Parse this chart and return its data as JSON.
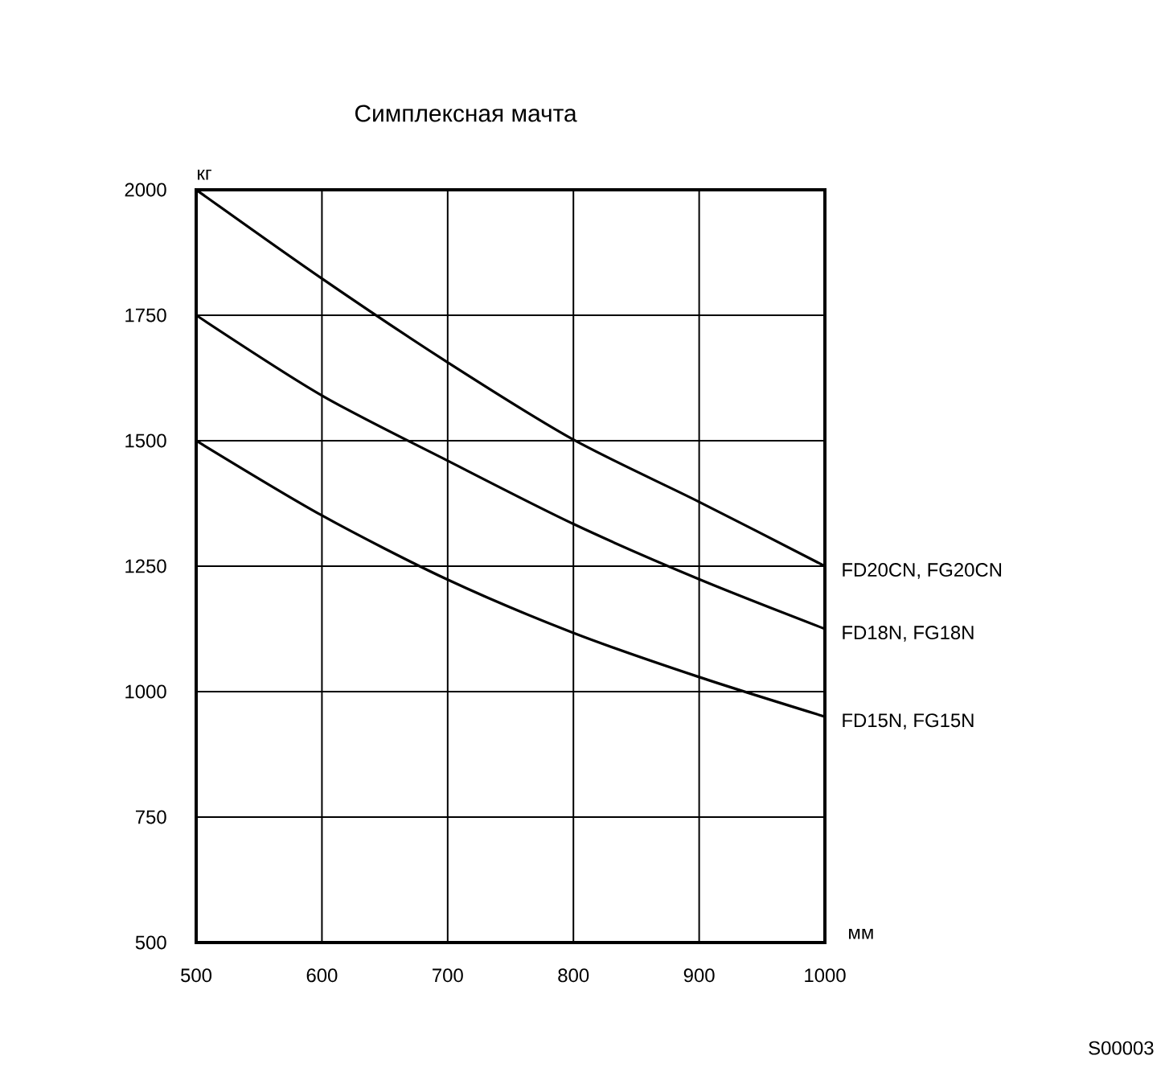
{
  "chart_data": {
    "type": "line",
    "title": "Симплексная мачта",
    "xlabel": "мм",
    "ylabel": "кг",
    "x": [
      500,
      600,
      700,
      800,
      900,
      1000
    ],
    "xlim": [
      500,
      1000
    ],
    "ylim": [
      500,
      2000
    ],
    "xticks": [
      500,
      600,
      700,
      800,
      900,
      1000
    ],
    "yticks": [
      500,
      750,
      1000,
      1250,
      1500,
      1750,
      2000
    ],
    "grid": true,
    "legend": false,
    "marker": "none",
    "line_style": "solid",
    "annotations": [
      "S00003"
    ],
    "series": [
      {
        "name": "FD20CN, FG20CN",
        "color": "#000000",
        "values": [
          2000,
          1823,
          1656,
          1502,
          1378,
          1250
        ]
      },
      {
        "name": "FD18N, FG18N",
        "color": "#000000",
        "values": [
          1750,
          1590,
          1460,
          1334,
          1224,
          1125
        ]
      },
      {
        "name": "FD15N, FG15N",
        "color": "#000000",
        "values": [
          1500,
          1351,
          1223,
          1117,
          1029,
          950
        ]
      }
    ]
  }
}
